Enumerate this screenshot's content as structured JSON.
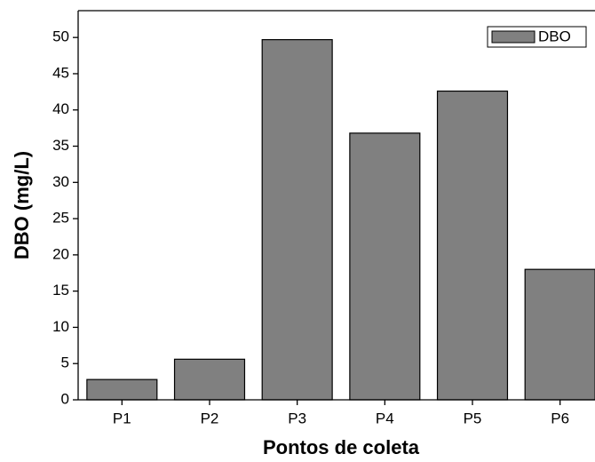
{
  "chart_data": {
    "type": "bar",
    "x_label": "Pontos de coleta",
    "y_label": "DBO (mg/L)",
    "categories": [
      "P1",
      "P2",
      "P3",
      "P4",
      "P5",
      "P6"
    ],
    "series": [
      {
        "name": "DBO",
        "color": "#808080",
        "values": [
          2.8,
          5.6,
          49.7,
          36.8,
          42.6,
          18.0
        ]
      }
    ],
    "ylim": [
      0,
      53.7
    ],
    "yticks": [
      0,
      5,
      10,
      15,
      20,
      25,
      30,
      35,
      40,
      45,
      50
    ],
    "legend": "upper-right"
  }
}
